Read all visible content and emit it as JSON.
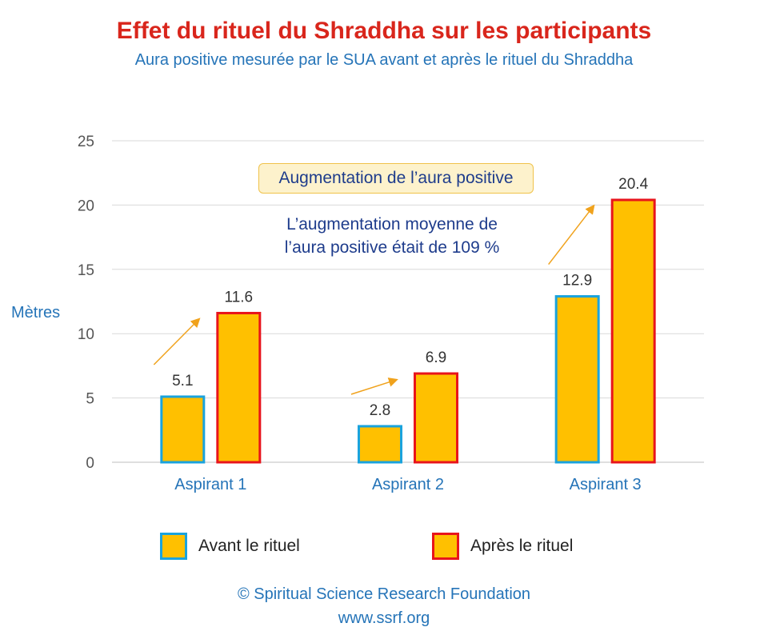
{
  "chart_data": {
    "type": "bar",
    "title": "Effet du rituel du Shraddha sur les participants",
    "subtitle": "Aura positive mesurée par le SUA avant et après le rituel du Shraddha",
    "ylabel": "Mètres",
    "xlabel": "",
    "ylim": [
      0,
      25
    ],
    "yticks": [
      0,
      5,
      10,
      15,
      20,
      25
    ],
    "grid": true,
    "legend_position": "bottom",
    "categories": [
      "Aspirant 1",
      "Aspirant 2",
      "Aspirant 3"
    ],
    "series": [
      {
        "name": "Avant le rituel",
        "values": [
          5.1,
          2.8,
          12.9
        ],
        "border_color": "#1aa3dd",
        "fill_color": "#ffc000"
      },
      {
        "name": "Après le rituel",
        "values": [
          11.6,
          6.9,
          20.4
        ],
        "border_color": "#e8141b",
        "fill_color": "#ffc000"
      }
    ],
    "value_labels": [
      "5.1",
      "2.8",
      "12.9",
      "11.6",
      "6.9",
      "20.4"
    ],
    "annotation_box": "Augmentation de l’aura positive",
    "annotation_note_line1": "L’augmentation moyenne de",
    "annotation_note_line2": "l’aura positive était de 109 %"
  },
  "colors": {
    "title": "#d9261c",
    "subtitle": "#2574b8",
    "axis_text": "#2574b8",
    "annotation_text": "#1e3c8c",
    "arrow": "#f0a21c"
  },
  "footer": {
    "copyright": "© Spiritual Science Research Foundation",
    "website": "www.ssrf.org"
  }
}
